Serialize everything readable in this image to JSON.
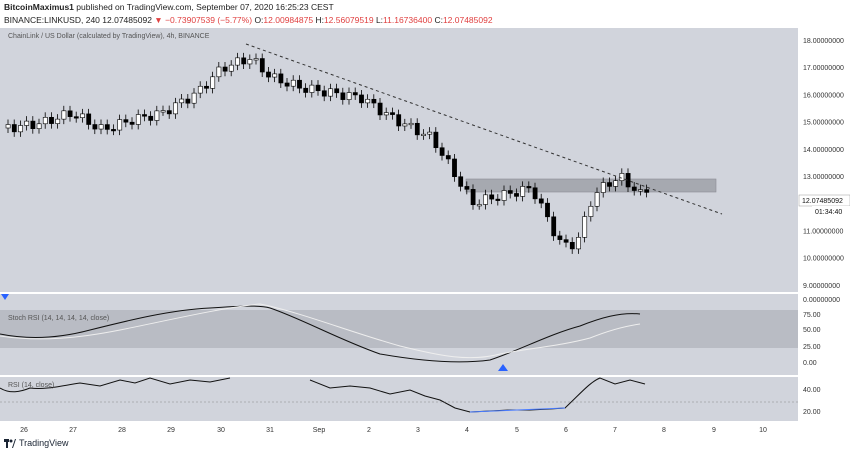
{
  "header": {
    "author": "BitcoinMaximus1",
    "published_text": "published on TradingView.com, September 07, 2020 16:25:23 CEST",
    "symbol_line": "BINANCE:LINKUSD, 240",
    "price": "12.07485092",
    "change": "−0.73907539 (−5.77%)",
    "ohlc": {
      "o_label": "O:",
      "o": "12.00984875",
      "h_label": "H:",
      "h": "12.56079519",
      "l_label": "L:",
      "l": "11.16736400",
      "c_label": "C:",
      "c": "12.07485092"
    }
  },
  "chart": {
    "title": "ChainLink / US Dollar (calculated by TradingView), 4h, BINANCE",
    "price_labels": [
      "18.00000000",
      "17.00000000",
      "16.00000000",
      "15.00000000",
      "14.00000000",
      "13.00000000",
      "12.00000000",
      "11.00000000",
      "10.00000000",
      "9.00000000"
    ],
    "current_price": "12.07485092",
    "countdown": "01:34:40",
    "stoch_title": "Stoch RSI (14, 14, 14, 14, close)",
    "stoch_labels": [
      "0.00000000",
      "75.00",
      "50.00",
      "25.00",
      "0.00"
    ],
    "rsi_title": "RSI (14, close)",
    "rsi_labels": [
      "40.00",
      "20.00"
    ],
    "time_labels": [
      "26",
      "27",
      "28",
      "29",
      "30",
      "31",
      "Sep",
      "2",
      "3",
      "4",
      "5",
      "6",
      "7",
      "8",
      "9",
      "10"
    ],
    "colors": {
      "background": "#d1d4dc",
      "bull": "#ffffff",
      "bear": "#000000",
      "zone": "#a6a9b0",
      "accent": "#2962ff"
    }
  },
  "footer": {
    "brand": "TradingView"
  }
}
